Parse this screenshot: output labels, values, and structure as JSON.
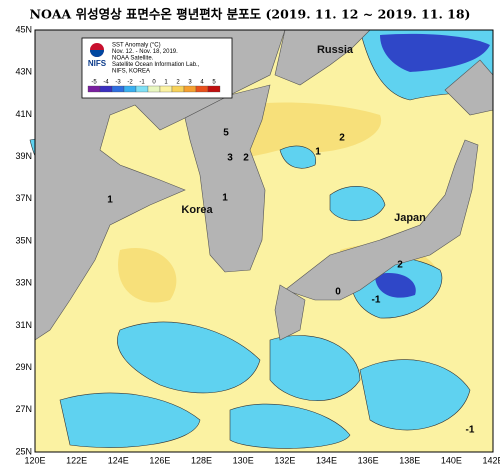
{
  "title": "NOAA 위성영상 표면수온 평년편차 분포도 (2019. 11. 12 ~ 2019. 11. 18)",
  "legend": {
    "org": "NIFS",
    "lines": [
      "SST Anomaly (°C)",
      "Nov. 12. - Nov. 18, 2019.",
      "NOAA Satellite.",
      "Satellite Ocean Information Lab.,",
      "NIFS, KOREA"
    ],
    "scale": [
      "-5",
      "-4",
      "-3",
      "-2",
      "-1",
      "0",
      "1",
      "2",
      "3",
      "4",
      "5"
    ]
  },
  "map": {
    "labels": [
      "Russia",
      "Korea",
      "Japan"
    ],
    "contour_labels": [
      "5",
      "3",
      "2",
      "1",
      "2",
      "1",
      "2",
      "0",
      "-1",
      "1",
      "-1"
    ],
    "lat_labels": [
      "45N",
      "43N",
      "41N",
      "39N",
      "37N",
      "35N",
      "33N",
      "31N",
      "29N",
      "27N",
      "25N"
    ],
    "lon_labels": [
      "120E",
      "122E",
      "124E",
      "126E",
      "128E",
      "130E",
      "132E",
      "134E",
      "136E",
      "138E",
      "140E",
      "142E"
    ]
  }
}
